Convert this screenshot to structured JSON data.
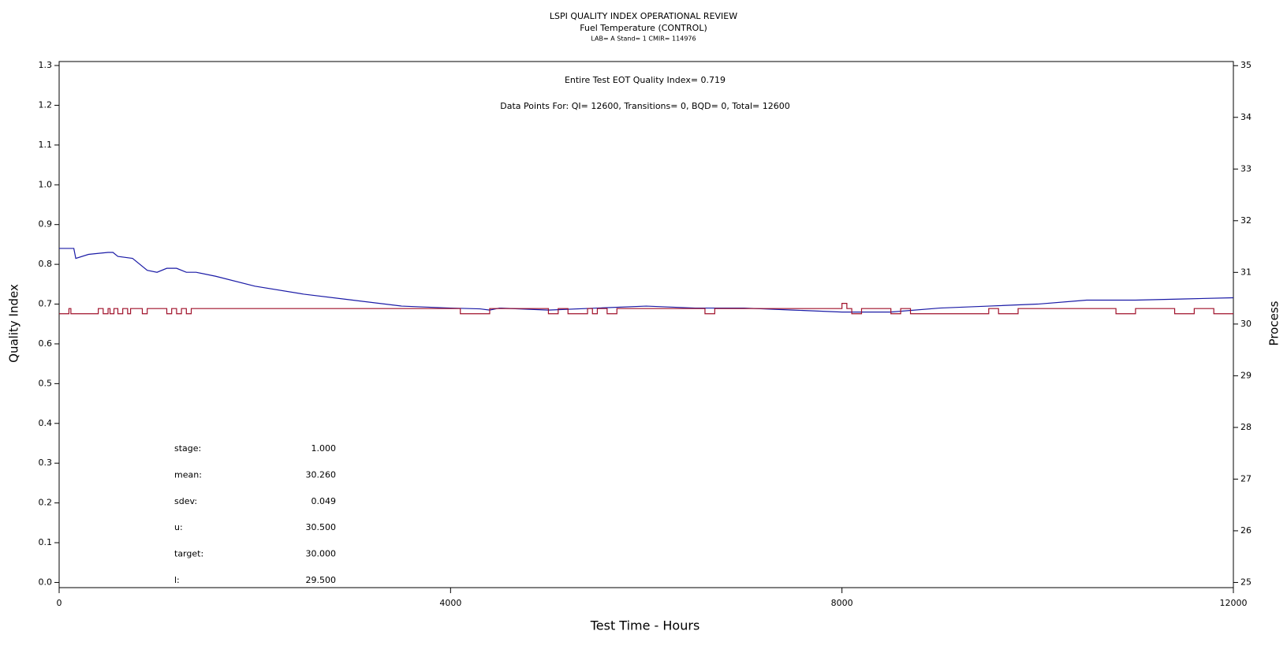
{
  "chart_data": {
    "type": "line",
    "title": "LSPI QUALITY INDEX OPERATIONAL REVIEW",
    "subtitle": "Fuel Temperature (CONTROL)",
    "subtitle2": "LAB= A Stand= 1 CMIR= 114976",
    "annotation1": "Entire Test EOT Quality Index=   0.719",
    "annotation2": "Data Points For: QI= 12600, Transitions=     0, BQD=     0, Total= 12600",
    "x_label": "Test Time - Hours",
    "y_label": "Quality Index",
    "y2_label": "Process",
    "xlim": [
      0,
      12000
    ],
    "xticks": [
      0,
      4000,
      8000,
      12000
    ],
    "ylim": [
      -0.013,
      1.31
    ],
    "yticks": [
      {
        "value": 0,
        "label": "0.0"
      },
      0.1,
      0.2,
      0.3,
      0.4,
      0.5,
      0.6,
      0.7,
      0.8,
      0.9,
      {
        "value": 1,
        "label": "1.0"
      },
      1.1,
      1.2,
      1.3
    ],
    "y2lim": [
      24.9,
      35.08
    ],
    "y2ticks": [
      25,
      26,
      27,
      28,
      29,
      30,
      31,
      32,
      33,
      34,
      35
    ],
    "series": [
      {
        "name": "Quality Index",
        "color": "#1a1aa6",
        "x": [
          0,
          150,
          170,
          300,
          500,
          550,
          600,
          750,
          900,
          1000,
          1100,
          1200,
          1300,
          1400,
          1600,
          2000,
          2500,
          3000,
          3500,
          4000,
          4300,
          4400,
          4500,
          5000,
          5500,
          6000,
          6500,
          7000,
          7500,
          8000,
          8500,
          9000,
          9500,
          10000,
          10500,
          11000,
          11500,
          12000
        ],
        "values": [
          0.84,
          0.84,
          0.815,
          0.825,
          0.83,
          0.83,
          0.82,
          0.815,
          0.785,
          0.78,
          0.79,
          0.79,
          0.78,
          0.78,
          0.77,
          0.745,
          0.725,
          0.71,
          0.695,
          0.69,
          0.688,
          0.685,
          0.69,
          0.685,
          0.69,
          0.695,
          0.69,
          0.69,
          0.685,
          0.68,
          0.68,
          0.69,
          0.695,
          0.7,
          0.71,
          0.71,
          0.713,
          0.716
        ]
      },
      {
        "name": "Process",
        "color": "#a0102a",
        "axis": "y2",
        "step": true,
        "x": [
          0,
          100,
          120,
          400,
          450,
          500,
          520,
          560,
          600,
          650,
          700,
          730,
          850,
          900,
          1100,
          1150,
          1200,
          1250,
          1300,
          1350,
          1400,
          4100,
          4400,
          4500,
          5000,
          5100,
          5200,
          5400,
          5450,
          5500,
          5600,
          5700,
          5800,
          6600,
          6700,
          6800,
          7500,
          8000,
          8050,
          8100,
          8200,
          8500,
          8600,
          8700,
          9500,
          9600,
          9800,
          10000,
          10500,
          10800,
          11000,
          11400,
          11600,
          11800,
          12000
        ],
        "values": [
          30.2,
          30.3,
          30.2,
          30.3,
          30.2,
          30.3,
          30.2,
          30.3,
          30.2,
          30.3,
          30.2,
          30.3,
          30.2,
          30.3,
          30.2,
          30.3,
          30.2,
          30.3,
          30.2,
          30.3,
          30.3,
          30.2,
          30.3,
          30.3,
          30.2,
          30.3,
          30.2,
          30.3,
          30.2,
          30.3,
          30.2,
          30.3,
          30.3,
          30.2,
          30.3,
          30.3,
          30.3,
          30.4,
          30.3,
          30.2,
          30.3,
          30.2,
          30.3,
          30.2,
          30.3,
          30.2,
          30.3,
          30.3,
          30.3,
          30.2,
          30.3,
          30.2,
          30.3,
          30.2,
          30.2
        ]
      }
    ],
    "stats": [
      {
        "label": "stage:",
        "value": "1.000"
      },
      {
        "label": "mean:",
        "value": "30.260"
      },
      {
        "label": "sdev:",
        "value": "0.049"
      },
      {
        "label": "u:",
        "value": "30.500"
      },
      {
        "label": "target:",
        "value": "30.000"
      },
      {
        "label": "l:",
        "value": "29.500"
      }
    ]
  }
}
